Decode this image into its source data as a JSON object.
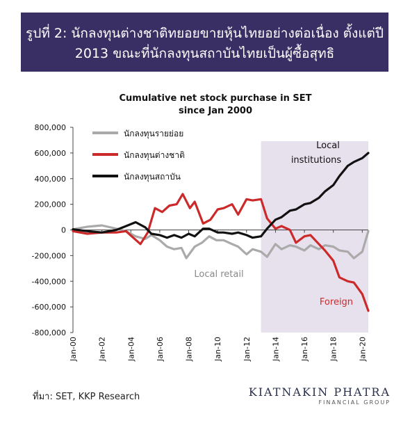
{
  "header": {
    "title_line1": "รูปที่ 2: นักลงทุนต่างชาติทยอยขายหุ้นไทยอย่างต่อเนื่อง ตั้งแต่ปี",
    "title_line2": "2013 ขณะที่นักลงทุนสถาบันไทยเป็นผู้ซื้อสุทธิ"
  },
  "footer": {
    "source": "ที่มา: SET, KKP Research",
    "brand_name": "KIATNAKIN PHATRA",
    "brand_sub": "FINANCIAL GROUP"
  },
  "colors": {
    "banner_bg": "#3a2f64",
    "shade": "#e7e1ee",
    "retail": "#aaaaaa",
    "foreign": "#cc2a2a",
    "institutions": "#111111"
  },
  "chart_data": {
    "type": "line",
    "title": "Cumulative net stock purchase in SET",
    "subtitle": "since Jan 2000",
    "xlabel": "",
    "ylabel": "",
    "xlim": [
      "2000-01",
      "2020-06"
    ],
    "ylim": [
      -800000,
      800000
    ],
    "yticks": [
      800000,
      600000,
      400000,
      200000,
      0,
      -200000,
      -400000,
      -600000,
      -800000
    ],
    "ytick_labels": [
      "800,000",
      "600,000",
      "400,000",
      "200,000",
      "0",
      "-200,000",
      "-400,000",
      "-600,000",
      "-800,000"
    ],
    "xtick_labels": [
      "Jan-00",
      "Jan-02",
      "Jan-04",
      "Jan-06",
      "Jan-08",
      "Jan-10",
      "Jan-12",
      "Jan-14",
      "Jan-16",
      "Jan-18",
      "Jan-20"
    ],
    "shaded_region": {
      "from": "2013-01",
      "to": "2020-06"
    },
    "legend_position": "top-left",
    "annotations": [
      {
        "text": "Local",
        "series": "institutions"
      },
      {
        "text": "institutions",
        "series": "institutions"
      },
      {
        "text": "Local retail",
        "series": "retail"
      },
      {
        "text": "Foreign",
        "series": "foreign"
      }
    ],
    "series": [
      {
        "name": "นักลงทุนรายย่อย",
        "key": "retail",
        "points": [
          [
            "2000-01",
            5000
          ],
          [
            "2001-01",
            25000
          ],
          [
            "2002-01",
            35000
          ],
          [
            "2003-01",
            10000
          ],
          [
            "2003-09",
            -10000
          ],
          [
            "2004-05",
            -50000
          ],
          [
            "2005-01",
            -70000
          ],
          [
            "2005-06",
            -40000
          ],
          [
            "2006-01",
            -80000
          ],
          [
            "2006-07",
            -130000
          ],
          [
            "2007-01",
            -150000
          ],
          [
            "2007-07",
            -140000
          ],
          [
            "2007-11",
            -220000
          ],
          [
            "2008-06",
            -130000
          ],
          [
            "2008-12",
            -100000
          ],
          [
            "2009-06",
            -50000
          ],
          [
            "2009-12",
            -80000
          ],
          [
            "2010-06",
            -80000
          ],
          [
            "2011-01",
            -110000
          ],
          [
            "2011-06",
            -130000
          ],
          [
            "2012-01",
            -190000
          ],
          [
            "2012-06",
            -150000
          ],
          [
            "2013-01",
            -170000
          ],
          [
            "2013-06",
            -210000
          ],
          [
            "2014-01",
            -110000
          ],
          [
            "2014-06",
            -150000
          ],
          [
            "2015-01",
            -120000
          ],
          [
            "2015-06",
            -130000
          ],
          [
            "2016-01",
            -160000
          ],
          [
            "2016-06",
            -120000
          ],
          [
            "2017-01",
            -150000
          ],
          [
            "2017-06",
            -120000
          ],
          [
            "2018-01",
            -130000
          ],
          [
            "2018-06",
            -160000
          ],
          [
            "2019-01",
            -170000
          ],
          [
            "2019-06",
            -220000
          ],
          [
            "2020-01",
            -170000
          ],
          [
            "2020-06",
            -10000
          ]
        ]
      },
      {
        "name": "นักลงทุนต่างชาติ",
        "key": "foreign",
        "points": [
          [
            "2000-01",
            -10000
          ],
          [
            "2001-01",
            -30000
          ],
          [
            "2002-01",
            -20000
          ],
          [
            "2003-01",
            -20000
          ],
          [
            "2003-09",
            -10000
          ],
          [
            "2004-03",
            -60000
          ],
          [
            "2004-09",
            -110000
          ],
          [
            "2005-03",
            -20000
          ],
          [
            "2005-09",
            170000
          ],
          [
            "2006-03",
            140000
          ],
          [
            "2006-09",
            190000
          ],
          [
            "2007-03",
            200000
          ],
          [
            "2007-08",
            280000
          ],
          [
            "2008-02",
            170000
          ],
          [
            "2008-06",
            220000
          ],
          [
            "2009-01",
            50000
          ],
          [
            "2009-07",
            80000
          ],
          [
            "2010-01",
            160000
          ],
          [
            "2010-06",
            170000
          ],
          [
            "2011-01",
            200000
          ],
          [
            "2011-06",
            120000
          ],
          [
            "2012-01",
            240000
          ],
          [
            "2012-06",
            230000
          ],
          [
            "2013-01",
            240000
          ],
          [
            "2013-06",
            90000
          ],
          [
            "2014-01",
            10000
          ],
          [
            "2014-06",
            30000
          ],
          [
            "2015-01",
            0
          ],
          [
            "2015-06",
            -100000
          ],
          [
            "2016-01",
            -50000
          ],
          [
            "2016-06",
            -40000
          ],
          [
            "2017-01",
            -110000
          ],
          [
            "2017-06",
            -160000
          ],
          [
            "2018-01",
            -240000
          ],
          [
            "2018-06",
            -370000
          ],
          [
            "2019-01",
            -400000
          ],
          [
            "2019-06",
            -410000
          ],
          [
            "2020-01",
            -500000
          ],
          [
            "2020-06",
            -630000
          ]
        ]
      },
      {
        "name": "นักลงทุนสถาบัน",
        "key": "institutions",
        "points": [
          [
            "2000-01",
            5000
          ],
          [
            "2001-01",
            -10000
          ],
          [
            "2002-01",
            -20000
          ],
          [
            "2003-01",
            0
          ],
          [
            "2003-09",
            30000
          ],
          [
            "2004-05",
            60000
          ],
          [
            "2005-01",
            20000
          ],
          [
            "2005-06",
            -30000
          ],
          [
            "2006-01",
            -40000
          ],
          [
            "2006-07",
            -60000
          ],
          [
            "2007-01",
            -40000
          ],
          [
            "2007-07",
            -60000
          ],
          [
            "2008-01",
            -30000
          ],
          [
            "2008-06",
            -50000
          ],
          [
            "2009-01",
            10000
          ],
          [
            "2009-06",
            10000
          ],
          [
            "2010-01",
            -20000
          ],
          [
            "2010-06",
            -20000
          ],
          [
            "2011-01",
            -30000
          ],
          [
            "2011-06",
            -20000
          ],
          [
            "2012-01",
            -40000
          ],
          [
            "2012-06",
            -60000
          ],
          [
            "2013-01",
            -50000
          ],
          [
            "2013-06",
            10000
          ],
          [
            "2014-01",
            80000
          ],
          [
            "2014-06",
            100000
          ],
          [
            "2015-01",
            150000
          ],
          [
            "2015-06",
            160000
          ],
          [
            "2016-01",
            200000
          ],
          [
            "2016-06",
            210000
          ],
          [
            "2017-01",
            250000
          ],
          [
            "2017-06",
            300000
          ],
          [
            "2018-01",
            350000
          ],
          [
            "2018-06",
            420000
          ],
          [
            "2019-01",
            500000
          ],
          [
            "2019-06",
            530000
          ],
          [
            "2020-01",
            560000
          ],
          [
            "2020-06",
            600000
          ]
        ]
      }
    ]
  }
}
